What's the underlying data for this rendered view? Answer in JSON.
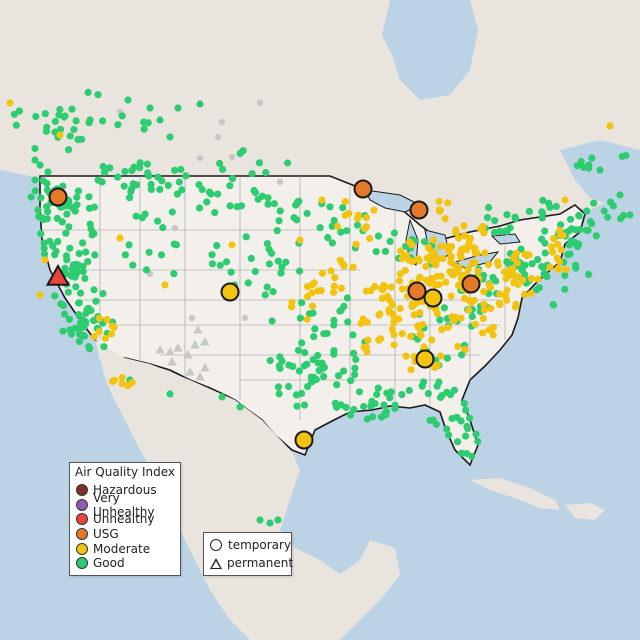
{
  "map": {
    "legend_aqi": {
      "title": "Air Quality Index",
      "items": [
        {
          "label": "Hazardous",
          "color": "#7e2e2b"
        },
        {
          "label": "Very Unhealthy",
          "color": "#8e5ab0"
        },
        {
          "label": "Unhealthy",
          "color": "#e8463a"
        },
        {
          "label": "USG",
          "color": "#e5792a"
        },
        {
          "label": "Moderate",
          "color": "#f2c411"
        },
        {
          "label": "Good",
          "color": "#2ecc71"
        }
      ]
    },
    "legend_type": {
      "items": [
        {
          "label": "temporary",
          "shape": "circle"
        },
        {
          "label": "permanent",
          "shape": "triangle"
        }
      ]
    },
    "colors": {
      "water": "#bcd3e6",
      "land": "#ece8e3",
      "us_land": "#f2efea",
      "border": "#1a1a1a",
      "no_data": "#c7c7c7"
    }
  }
}
